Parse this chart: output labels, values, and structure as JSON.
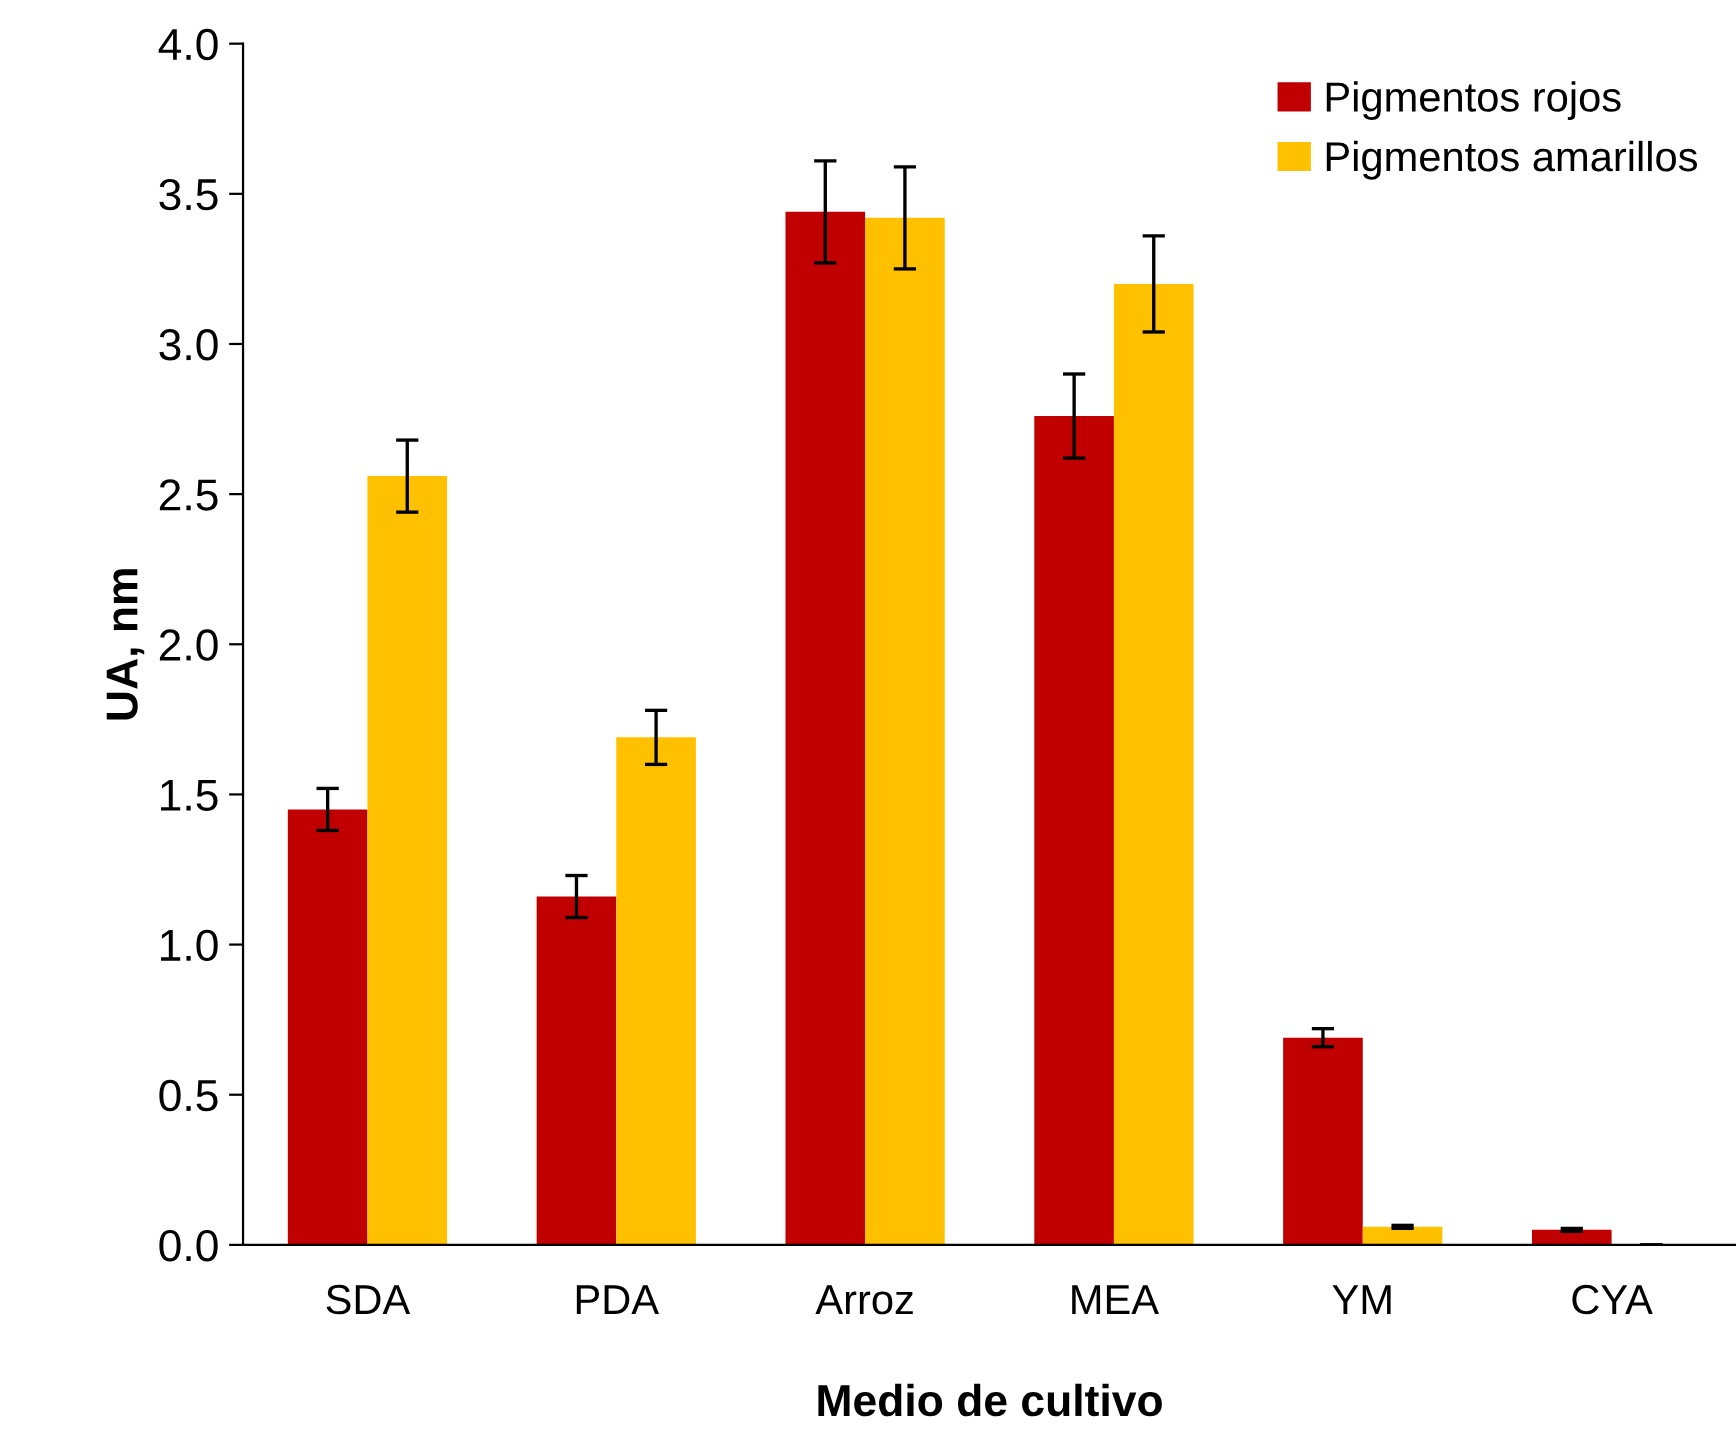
{
  "chart_data": {
    "type": "bar",
    "xlabel": "Medio de cultivo",
    "ylabel": "UA, nm",
    "categories": [
      "SDA",
      "PDA",
      "Arroz",
      "MEA",
      "YM",
      "CYA"
    ],
    "series": [
      {
        "name": "Pigmentos rojos",
        "color": "#c00000",
        "values": [
          1.45,
          1.16,
          3.44,
          2.76,
          0.69,
          0.05
        ],
        "errors": [
          0.07,
          0.07,
          0.17,
          0.14,
          0.03,
          0.005
        ]
      },
      {
        "name": "Pigmentos amarillos",
        "color": "#ffc000",
        "values": [
          2.56,
          1.69,
          3.42,
          3.2,
          0.06,
          0.0
        ],
        "errors": [
          0.12,
          0.09,
          0.17,
          0.16,
          0.005,
          null
        ]
      }
    ],
    "ylim": [
      0,
      4
    ],
    "yticks": [
      {
        "value": 0,
        "label": "0.0"
      },
      {
        "value": 0.5,
        "label": "0.5"
      },
      {
        "value": 1,
        "label": "1.0"
      },
      {
        "value": 1.5,
        "label": "1.5"
      },
      {
        "value": 2,
        "label": "2.0"
      },
      {
        "value": 2.5,
        "label": "2.5"
      },
      {
        "value": 3,
        "label": "3.0"
      },
      {
        "value": 3.5,
        "label": "3.5"
      },
      {
        "value": 4,
        "label": "4.0"
      }
    ],
    "grid": false,
    "legend": "top right"
  }
}
